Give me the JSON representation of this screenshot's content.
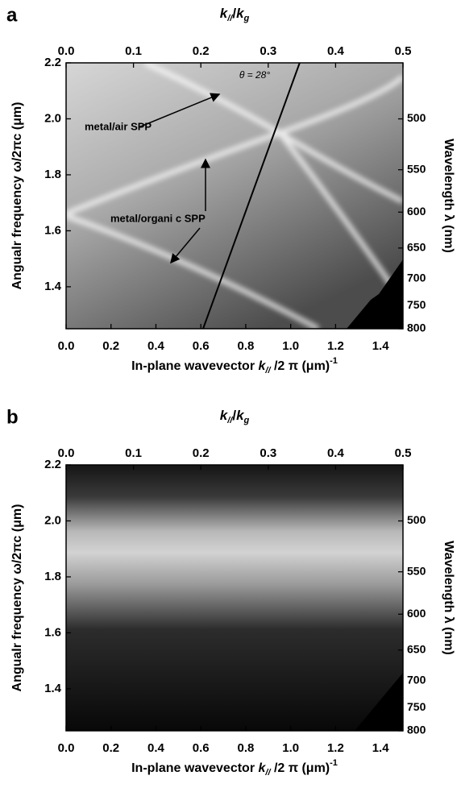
{
  "charts_note_free": null,
  "chart_data": [
    {
      "type": "heatmap",
      "panel": "a",
      "xlabel": [
        "In-plane wavevector ",
        "k",
        "//",
        " /2 π (μm)",
        "-1"
      ],
      "x2label": [
        "k",
        "//",
        "/",
        "k",
        "g"
      ],
      "ylabel": "Angualr frequency ω/2πc (μm)",
      "y2label": "Wavelength λ (nm)",
      "xlim": [
        0,
        1.5
      ],
      "xticks": [
        {
          "value": 0,
          "label": "0.0"
        },
        {
          "value": 0.2,
          "label": "0.2"
        },
        {
          "value": 0.4,
          "label": "0.4"
        },
        {
          "value": 0.6,
          "label": "0.6"
        },
        {
          "value": 0.8,
          "label": "0.8"
        },
        {
          "value": 1,
          "label": "1.0"
        },
        {
          "value": 1.2,
          "label": "1.2"
        },
        {
          "value": 1.4,
          "label": "1.4"
        }
      ],
      "x2lim": [
        0,
        0.5
      ],
      "x2ticks": [
        {
          "value": 0,
          "label": "0.0"
        },
        0.1,
        0.2,
        0.3,
        0.4,
        0.5
      ],
      "ylim": [
        1.25,
        2.2
      ],
      "yticks": [
        1.4,
        1.6,
        1.8,
        {
          "value": 2,
          "label": "2.0"
        },
        2.2
      ],
      "y2scale": "reciprocal",
      "y2lim": [
        800,
        454.5
      ],
      "y2ticks": [
        500,
        550,
        600,
        650,
        700,
        750,
        800
      ],
      "annotations": [
        "metal/air  SPP",
        "metal/organi c SPP"
      ],
      "series": [
        {
          "name": "θ = 28°",
          "color": "#000000",
          "x": [
            0.61,
            1.04
          ],
          "values": [
            1.25,
            2.2
          ]
        }
      ]
    },
    {
      "type": "heatmap",
      "panel": "b",
      "xlabel": [
        "In-plane wavevector ",
        "k",
        "//",
        " /2 π (μm)",
        "-1"
      ],
      "x2label": [
        "k",
        "//",
        "/",
        "k",
        "g"
      ],
      "ylabel": "Angualr frequency ω/2πc (μm)",
      "y2label": "Wavelength λ (nm)",
      "xlim": [
        0,
        1.5
      ],
      "xticks": [
        {
          "value": 0,
          "label": "0.0"
        },
        {
          "value": 0.2,
          "label": "0.2"
        },
        {
          "value": 0.4,
          "label": "0.4"
        },
        {
          "value": 0.6,
          "label": "0.6"
        },
        {
          "value": 0.8,
          "label": "0.8"
        },
        {
          "value": 1,
          "label": "1.0"
        },
        {
          "value": 1.2,
          "label": "1.2"
        },
        {
          "value": 1.4,
          "label": "1.4"
        }
      ],
      "x2lim": [
        0,
        0.5
      ],
      "x2ticks": [
        {
          "value": 0,
          "label": "0.0"
        },
        0.1,
        0.2,
        0.3,
        0.4,
        0.5
      ],
      "ylim": [
        1.25,
        2.2
      ],
      "yticks": [
        1.4,
        1.6,
        1.8,
        {
          "value": 2,
          "label": "2.0"
        },
        2.2
      ],
      "y2scale": "reciprocal",
      "y2lim": [
        800,
        454.5
      ],
      "y2ticks": [
        500,
        550,
        600,
        650,
        700,
        750,
        800
      ]
    }
  ]
}
